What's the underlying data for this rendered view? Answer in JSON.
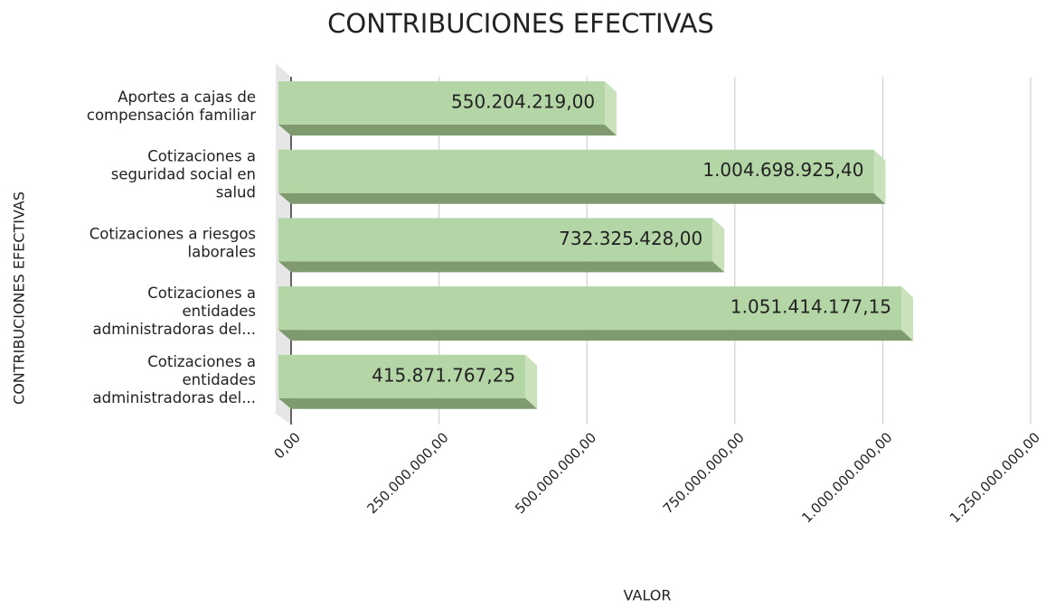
{
  "chart_data": {
    "type": "bar",
    "orientation": "horizontal",
    "title": "CONTRIBUCIONES EFECTIVAS",
    "x_label": "VALOR",
    "y_label": "CONTRIBUCIONES EFECTIVAS",
    "categories": [
      "Aportes a cajas de compensación familiar",
      "Cotizaciones a seguridad social en salud",
      "Cotizaciones a riesgos laborales",
      "Cotizaciones a entidades administradoras del...",
      "Cotizaciones a entidades administradoras del..."
    ],
    "values": [
      550204219.0,
      1004698925.4,
      732325428.0,
      1051414177.15,
      415871767.25
    ],
    "value_labels": [
      "550.204.219,00",
      "1.004.698.925,40",
      "732.325.428,00",
      "1.051.414.177,15",
      "415.871.767,25"
    ],
    "color": "#b4d6a6",
    "xlim": [
      0,
      1250000000
    ],
    "xticks": [
      {
        "value": 0,
        "label": "0,00"
      },
      {
        "value": 250000000,
        "label": "250.000.000,00"
      },
      {
        "value": 500000000,
        "label": "500.000.000,00"
      },
      {
        "value": 750000000,
        "label": "750.000.000,00"
      },
      {
        "value": 1000000000,
        "label": "1.000.000.000,00"
      },
      {
        "value": 1250000000,
        "label": "1.250.000.000,00"
      }
    ],
    "grid": true
  }
}
